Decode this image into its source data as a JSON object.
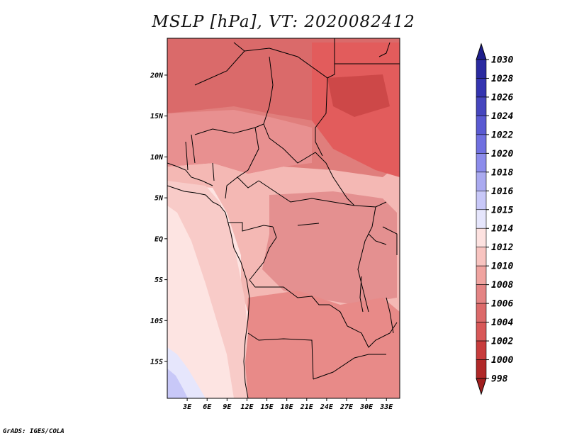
{
  "title": "MSLP [hPa], VT: 2020082412",
  "credit": "GrADS: IGES/COLA",
  "map": {
    "variable": "MSLP",
    "units": "hPa",
    "valid_time": "2020082412",
    "lat_labels": [
      "20N",
      "15N",
      "10N",
      "5N",
      "EQ",
      "5S",
      "10S",
      "15S"
    ],
    "lat_values": [
      20,
      15,
      10,
      5,
      0,
      -5,
      -10,
      -15
    ],
    "lon_labels": [
      "3E",
      "6E",
      "9E",
      "12E",
      "15E",
      "18E",
      "21E",
      "24E",
      "27E",
      "30E",
      "33E"
    ],
    "lon_values": [
      3,
      6,
      9,
      12,
      15,
      18,
      21,
      24,
      27,
      30,
      33
    ],
    "lon_range": [
      0,
      35
    ],
    "lat_range": [
      -19.5,
      24.5
    ]
  },
  "colorbar": {
    "labels": [
      "1030",
      "1028",
      "1026",
      "1024",
      "1022",
      "1020",
      "1018",
      "1016",
      "1015",
      "1014",
      "1012",
      "1010",
      "1008",
      "1006",
      "1004",
      "1002",
      "1000",
      "998"
    ],
    "colors": [
      "#1e1e8c",
      "#2a2aa0",
      "#3434b0",
      "#4646be",
      "#5a5ad2",
      "#7070e0",
      "#8c8ceb",
      "#aaaaf0",
      "#c8c8f8",
      "#e6e6fc",
      "#fde2e0",
      "#f8c4c0",
      "#f0a4a0",
      "#e48484",
      "#dc6a6a",
      "#d85858",
      "#c83c3c",
      "#b02828",
      "#a01e1e"
    ]
  }
}
